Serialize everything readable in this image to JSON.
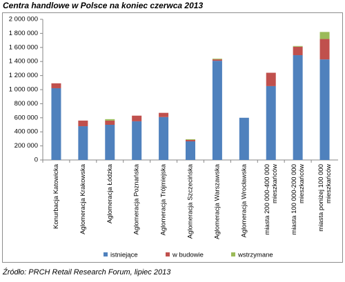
{
  "chart_data": {
    "type": "stacked_bar",
    "title": "Centra handlowe  w Polsce na koniec czerwca 2013",
    "source": "Źródło: PRCH Retail Research Forum, lipiec 2013",
    "categories": [
      "Konurbacja Katowicka",
      "Aglomeracja Krakowska",
      "Aglomeracja Łódzka",
      "Aglomeracja Poznańska",
      "Aglomeracja Trójmiejska",
      "Aglomeracja Szczecińska",
      "Aglomeracja Warszawska",
      "Aglomeracja Wrocławska",
      "miasta 200 000-400 000\nmieszkańców",
      "miasta 100 000-200 000\nmieszkańców",
      "miasta poniżej 100 000\nmieszkańców"
    ],
    "series": [
      {
        "name": "istniejące",
        "color": "#4f81bd",
        "values": [
          1020000,
          480000,
          500000,
          550000,
          610000,
          265000,
          1410000,
          600000,
          1050000,
          1490000,
          1430000
        ]
      },
      {
        "name": "w budowie",
        "color": "#c0504d",
        "values": [
          70000,
          80000,
          60000,
          80000,
          60000,
          20000,
          20000,
          0,
          190000,
          120000,
          290000
        ]
      },
      {
        "name": "wstrzymane",
        "color": "#9bbb59",
        "values": [
          0,
          0,
          20000,
          0,
          0,
          10000,
          10000,
          0,
          0,
          10000,
          100000
        ]
      }
    ],
    "ylim": [
      0,
      2000000
    ],
    "yticks": [
      0,
      {
        "value": 200000,
        "label": "200 000"
      },
      {
        "value": 400000,
        "label": "400 000"
      },
      {
        "value": 600000,
        "label": "600 000"
      },
      {
        "value": 800000,
        "label": "800 000"
      },
      {
        "value": 1000000,
        "label": "1 000 000"
      },
      {
        "value": 1200000,
        "label": "1 200 000"
      },
      {
        "value": 1400000,
        "label": "1 400 000"
      },
      {
        "value": 1600000,
        "label": "1 600 000"
      },
      {
        "value": 1800000,
        "label": "1 800 000"
      },
      {
        "value": 2000000,
        "label": "2 000 000"
      }
    ],
    "grid": false,
    "legend": "bottom"
  }
}
